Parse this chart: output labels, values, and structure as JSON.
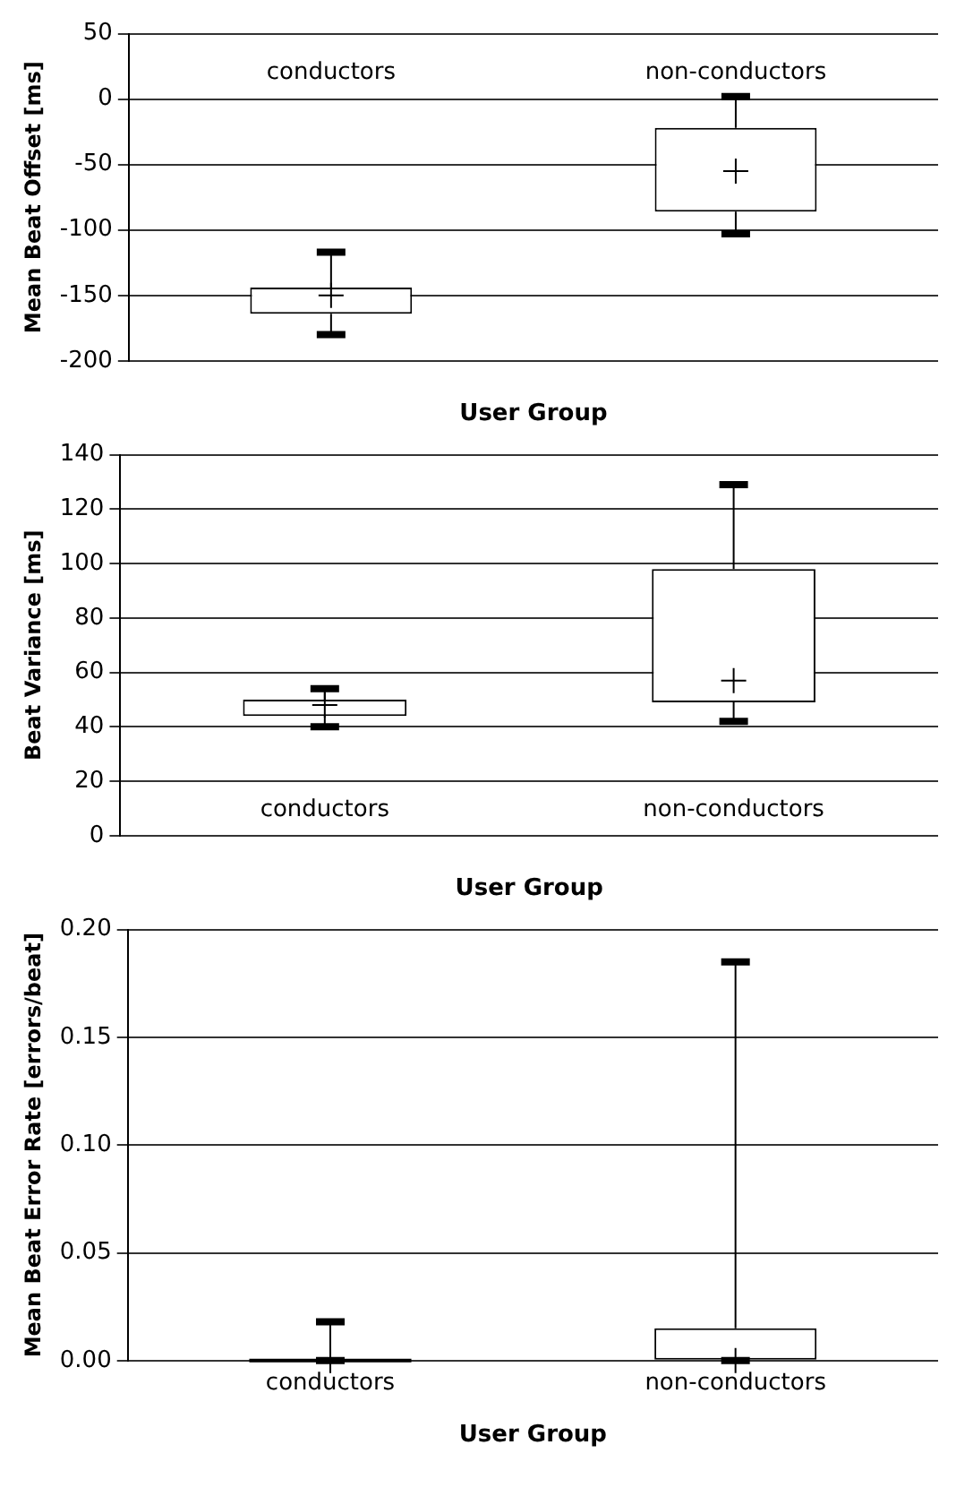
{
  "chart_data": [
    {
      "type": "box",
      "xlabel": "User Group",
      "ylabel": "Mean Beat Offset [ms]",
      "categories": [
        "conductors",
        "non-conductors"
      ],
      "boxes": [
        {
          "low": -180,
          "q1": -164,
          "median": -150,
          "q3": -144,
          "high": -117
        },
        {
          "low": -103,
          "q1": -86,
          "median": -55,
          "q3": -22,
          "high": 2
        }
      ],
      "ylim": [
        -200,
        50
      ],
      "yticks": [
        -200,
        -150,
        -100,
        -50,
        0,
        50
      ],
      "grid": "y",
      "marker": "cross"
    },
    {
      "type": "box",
      "xlabel": "User Group",
      "ylabel": "Beat Variance [ms]",
      "categories": [
        "conductors",
        "non-conductors"
      ],
      "boxes": [
        {
          "low": 40,
          "q1": 44,
          "median": 48,
          "q3": 50,
          "high": 54
        },
        {
          "low": 42,
          "q1": 49,
          "median": 57,
          "q3": 98,
          "high": 129
        }
      ],
      "ylim": [
        0,
        140
      ],
      "yticks": [
        0,
        20,
        40,
        60,
        80,
        100,
        120,
        140
      ],
      "grid": "y",
      "marker": "cross"
    },
    {
      "type": "box",
      "xlabel": "User Group",
      "ylabel": "Mean Beat Error Rate [errors/beat]",
      "categories": [
        "conductors",
        "non-conductors"
      ],
      "boxes": [
        {
          "low": 0,
          "q1": 0,
          "median": 0,
          "q3": 0,
          "high": 0.018
        },
        {
          "low": 0,
          "q1": 0,
          "median": 0,
          "q3": 0.015,
          "high": 0.185
        }
      ],
      "ylim": [
        0,
        0.2
      ],
      "yticks": [
        {
          "value": 0,
          "label": "0.00"
        },
        {
          "value": 0.05,
          "label": "0.05"
        },
        {
          "value": 0.1,
          "label": "0.10"
        },
        {
          "value": 0.15,
          "label": "0.15"
        },
        {
          "value": 0.2,
          "label": "0.20"
        }
      ],
      "grid": "y",
      "marker": "cross"
    }
  ]
}
